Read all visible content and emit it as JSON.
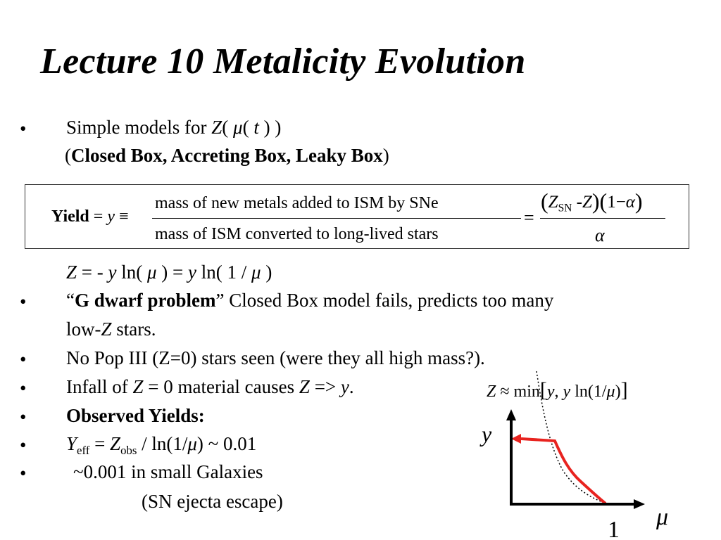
{
  "title": "Lecture 10  Metalicity Evolution",
  "bullet_glyph": "•",
  "lines": {
    "simple_pre": "Simple models for ",
    "simple_Z": "Z",
    "simple_open": "( ",
    "simple_mu": "μ",
    "simple_t_open": "( ",
    "simple_t": "t",
    "simple_close": " ) )",
    "models_open": "(",
    "models_bold": "Closed Box, Accreting Box, Leaky Box",
    "models_close": ")",
    "zeq_Z": "Z",
    "zeq_a": " = - ",
    "zeq_y": "y",
    "zeq_b": " ln( ",
    "zeq_mu1": "μ",
    "zeq_c": " ) = ",
    "zeq_y2": "y",
    "zeq_d": " ln( 1 / ",
    "zeq_mu2": "μ",
    "zeq_e": " )",
    "gdwarf_open": "“",
    "gdwarf_bold": "G dwarf problem",
    "gdwarf_rest": "”  Closed Box model fails, predicts too many",
    "gdwarf_line2a": "low-",
    "gdwarf_line2Z": "Z",
    "gdwarf_line2b": "  stars.",
    "popiii": "No Pop III (Z=0) stars seen (were they all high mass?).",
    "infall_a": "Infall of ",
    "infall_Z": "Z",
    "infall_b": " = 0 material causes ",
    "infall_Z2": "Z",
    "infall_c": " => ",
    "infall_y": "y",
    "infall_d": ".",
    "observed": "Observed Yields:",
    "yeff_Y": "Y",
    "yeff_sub": "eff",
    "yeff_a": " = ",
    "yeff_Z": "Z",
    "yeff_sub2": "obs",
    "yeff_b": " / ln(1/",
    "yeff_mu": "μ",
    "yeff_c": ") ~ 0.01",
    "small_gal": "  ~0.001 in small Galaxies",
    "sn_escape": "(SN ejecta escape)"
  },
  "yield_box": {
    "label": "Yield",
    "eq": " = ",
    "y": "y",
    "equiv": " ≡",
    "numerator": "mass of new metals added to ISM by SNe",
    "denominator": "mass of ISM converted to long-lived stars",
    "eq2": "=",
    "p_open": "(",
    "Z_sn": "Z",
    "sn_sub": "SN",
    "minus": " -",
    "Z": "Z",
    "p_close": ")",
    "p2_open": "(",
    "one_minus": "1−",
    "alpha": "α",
    "p2_close": ")",
    "alpha_den": "α"
  },
  "graph": {
    "formula_Z": "Z",
    "formula_approx": " ≈ min",
    "formula_lb": "[",
    "formula_y1": "y",
    "formula_comma": ", ",
    "formula_y2": "y",
    "formula_ln": " ln(1/",
    "formula_mu": "μ",
    "formula_rp": ")",
    "formula_rb": "]",
    "y_axis_label": "y",
    "x_axis_label": "μ",
    "x_tick_label": "1",
    "axis_color": "#000000",
    "curve_color": "#e8231f",
    "dotted_color": "#000000"
  }
}
